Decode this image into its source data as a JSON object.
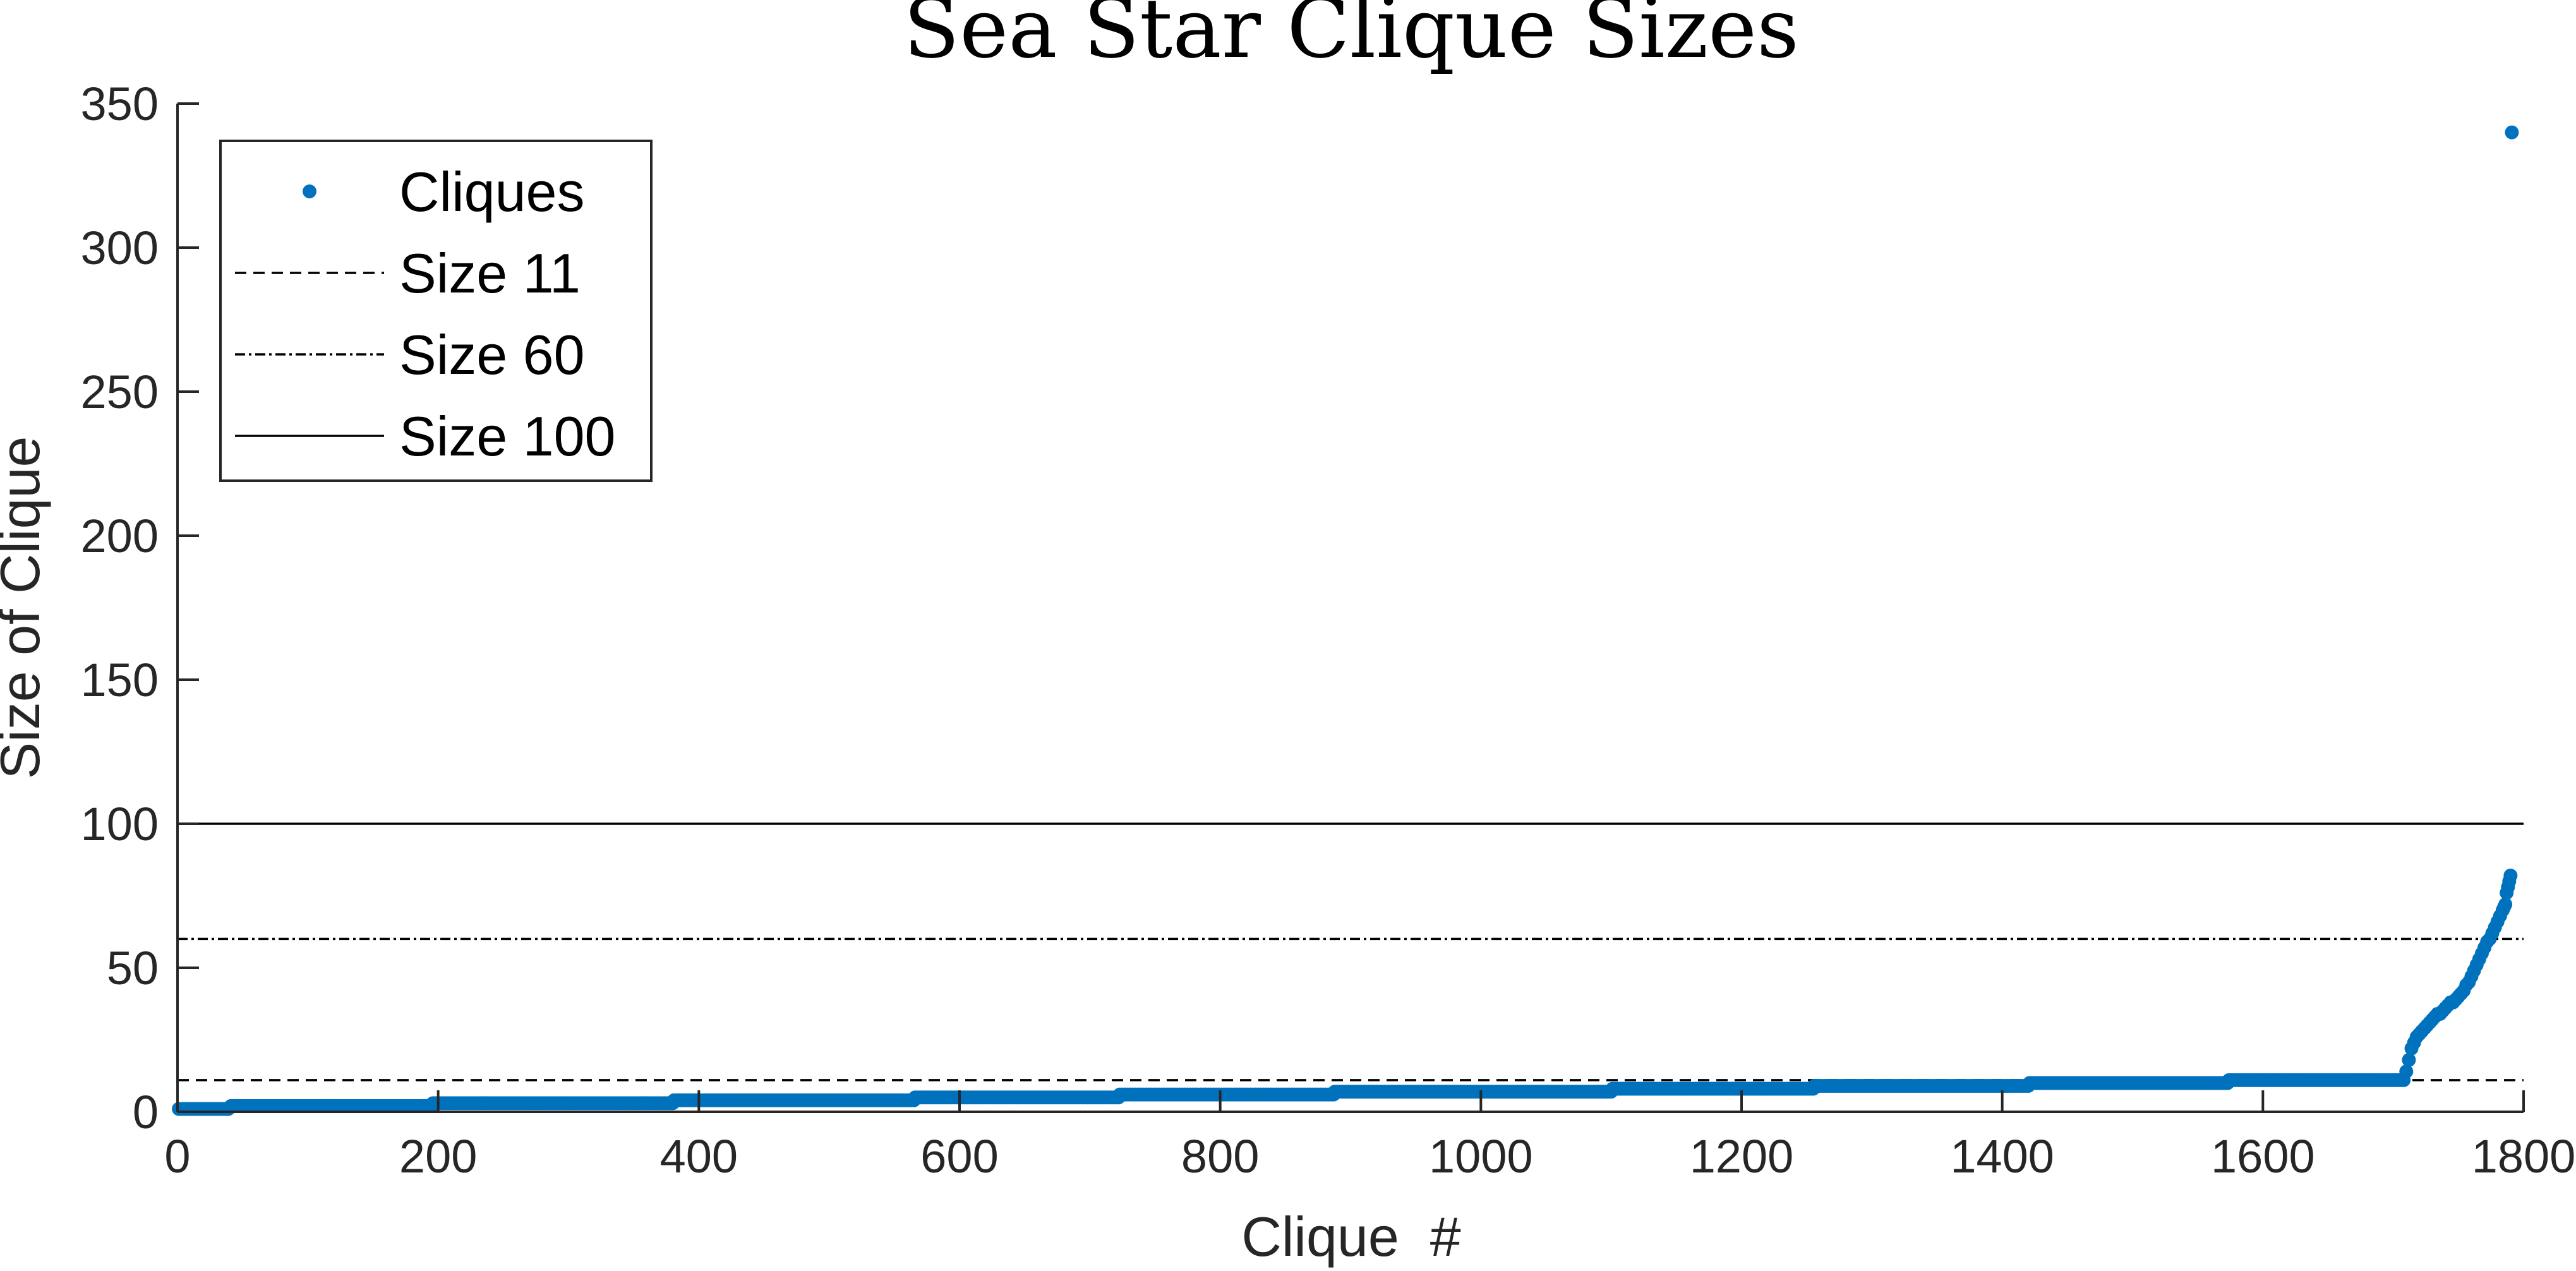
{
  "chart_data": {
    "type": "scatter",
    "title": "Sea Star Clique Sizes",
    "xlabel": "Clique  #",
    "ylabel": "Size of Clique",
    "xlim": [
      0,
      1800
    ],
    "ylim": [
      0,
      350
    ],
    "xticks": [
      "0",
      "200",
      "400",
      "600",
      "800",
      "1000",
      "1200",
      "1400",
      "1600",
      "1800"
    ],
    "yticks": [
      "0",
      "50",
      "100",
      "150",
      "200",
      "250",
      "300",
      "350"
    ],
    "grid": false,
    "legend_position": "top-left",
    "series": [
      {
        "name": "Cliques",
        "marker": "dot",
        "color": "#0072BD",
        "steps": [
          {
            "x0": 1,
            "x1": 40,
            "y": 1
          },
          {
            "x0": 41,
            "x1": 195,
            "y": 2
          },
          {
            "x0": 196,
            "x1": 380,
            "y": 3
          },
          {
            "x0": 381,
            "x1": 565,
            "y": 4
          },
          {
            "x0": 566,
            "x1": 722,
            "y": 5
          },
          {
            "x0": 723,
            "x1": 887,
            "y": 6
          },
          {
            "x0": 888,
            "x1": 1100,
            "y": 7
          },
          {
            "x0": 1101,
            "x1": 1255,
            "y": 8
          },
          {
            "x0": 1256,
            "x1": 1420,
            "y": 9
          },
          {
            "x0": 1421,
            "x1": 1573,
            "y": 10
          },
          {
            "x0": 1574,
            "x1": 1708,
            "y": 11
          }
        ],
        "x": [
          1710,
          1712,
          1714,
          1716,
          1718,
          1720,
          1722,
          1724,
          1726,
          1728,
          1730,
          1732,
          1734,
          1736,
          1738,
          1740,
          1742,
          1744,
          1746,
          1748,
          1750,
          1752,
          1754,
          1756,
          1758,
          1760,
          1762,
          1764,
          1766,
          1768,
          1770,
          1772,
          1774,
          1776,
          1778,
          1780,
          1782,
          1784,
          1785,
          1786,
          1787,
          1788,
          1789,
          1790,
          1791
        ],
        "y": [
          14,
          18,
          22,
          24,
          26,
          27,
          28,
          29,
          30,
          31,
          32,
          33,
          34,
          34,
          35,
          36,
          37,
          38,
          38,
          39,
          40,
          41,
          42,
          44,
          45,
          47,
          49,
          51,
          53,
          55,
          57,
          59,
          60,
          62,
          64,
          66,
          68,
          70,
          71,
          72,
          76,
          78,
          80,
          82,
          340
        ]
      },
      {
        "name": "Size 11",
        "type": "hline",
        "y": 11,
        "style": "dashed",
        "color": "#000000"
      },
      {
        "name": "Size 60",
        "type": "hline",
        "y": 60,
        "style": "dashdot",
        "color": "#000000"
      },
      {
        "name": "Size 100",
        "type": "hline",
        "y": 100,
        "style": "solid",
        "color": "#000000"
      }
    ]
  }
}
